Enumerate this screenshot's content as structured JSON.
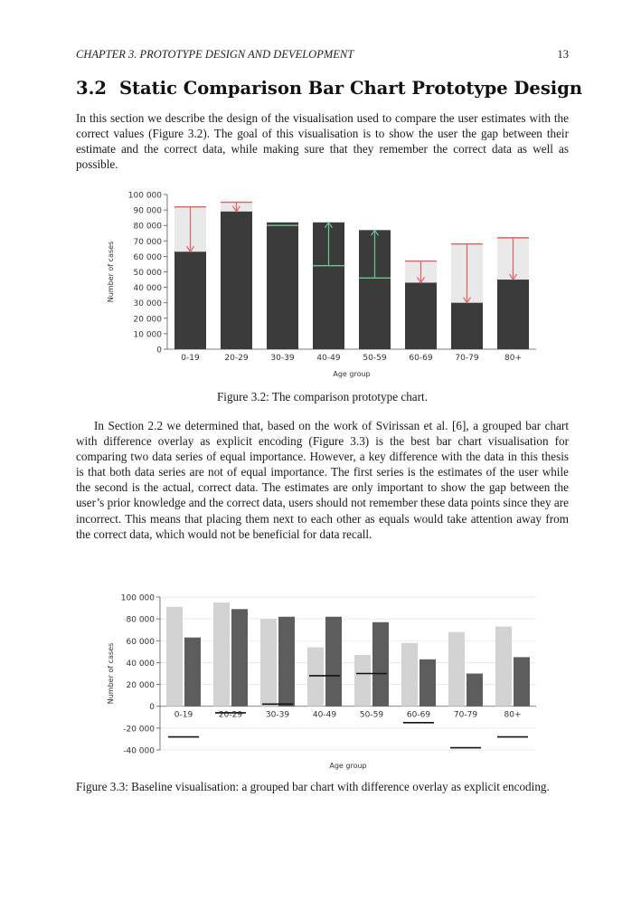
{
  "page": {
    "running_head": "CHAPTER 3.  PROTOTYPE DESIGN AND DEVELOPMENT",
    "page_number": "13"
  },
  "section": {
    "number": "3.2",
    "title": "Static Comparison Bar Chart Prototype Design"
  },
  "paragraphs": {
    "p1": "In this section we describe the design of the visualisation used to compare the user estimates with the correct values (Figure 3.2). The goal of this visualisation is to show the user the gap between their estimate and the correct data, while making sure that they remember the correct data as well as possible.",
    "p2": "In Section 2.2 we determined that, based on the work of Svirissan et al. [6], a grouped bar chart with difference overlay as explicit encoding (Figure 3.3) is the best bar chart visualisation for comparing two data series of equal importance. However, a key difference with the data in this thesis is that both data series are not of equal importance. The first series is the estimates of the user while the second is the actual, correct data. The estimates are only important to show the gap between the user’s prior knowledge and the correct data, users should not remember these data points since they are incorrect. This means that placing them next to each other as equals would take attention away from the correct data, which would not be beneficial for data recall."
  },
  "figures": {
    "fig1_caption": "Figure 3.2: The comparison prototype chart.",
    "fig2_caption": "Figure 3.3: Baseline visualisation: a grouped bar chart with difference overlay as explicit encoding."
  },
  "colors": {
    "actual_bar": "#3b3b3b",
    "estimate_bg": "#e9e9e9",
    "over_arrow": "#e8605d",
    "under_arrow": "#6cc58b",
    "estimate_bar": "#d3d3d3",
    "actual_bar2": "#5d5d5d",
    "diff_line": "#111111"
  },
  "chart_data": [
    {
      "type": "bar",
      "categories": [
        "0-19",
        "20-29",
        "30-39",
        "40-49",
        "50-59",
        "60-69",
        "70-79",
        "80+"
      ],
      "series": [
        {
          "values": [
            92000,
            95000,
            80000,
            54000,
            46000,
            57000,
            68000,
            72000
          ]
        },
        {
          "values": [
            63000,
            89000,
            82000,
            82000,
            77000,
            43000,
            30000,
            45000
          ]
        }
      ],
      "xlabel": "Age group",
      "ylabel": "Number of cases",
      "ylim": [
        0,
        100000
      ],
      "yticks": [
        "100 000",
        "90 000",
        "80 000",
        "70 000",
        "60 000",
        "50 000",
        "40 000",
        "30 000",
        "20 000",
        "10 000",
        "0"
      ],
      "ytick_values": [
        100000,
        90000,
        80000,
        70000,
        60000,
        50000,
        40000,
        30000,
        20000,
        10000,
        0
      ],
      "grid": false,
      "legend": "none"
    },
    {
      "type": "bar",
      "categories": [
        "0-19",
        "20-29",
        "30-39",
        "40-49",
        "50-59",
        "60-69",
        "70-79",
        "80+"
      ],
      "series": [
        {
          "values": [
            91000,
            95000,
            80000,
            54000,
            47000,
            58000,
            68000,
            73000
          ]
        },
        {
          "values": [
            63000,
            89000,
            82000,
            82000,
            77000,
            43000,
            30000,
            45000
          ]
        },
        {
          "values": [
            -28000,
            -6000,
            2000,
            28000,
            30000,
            -15000,
            -38000,
            -28000
          ]
        }
      ],
      "xlabel": "Age group",
      "ylabel": "Number of cases",
      "ylim": [
        -40000,
        100000
      ],
      "yticks": [
        "100 000",
        "80 000",
        "60 000",
        "40 000",
        "20 000",
        "0",
        "-20 000",
        "-40 000"
      ],
      "ytick_values": [
        100000,
        80000,
        60000,
        40000,
        20000,
        0,
        -20000,
        -40000
      ],
      "grid": true,
      "legend": "none"
    }
  ]
}
